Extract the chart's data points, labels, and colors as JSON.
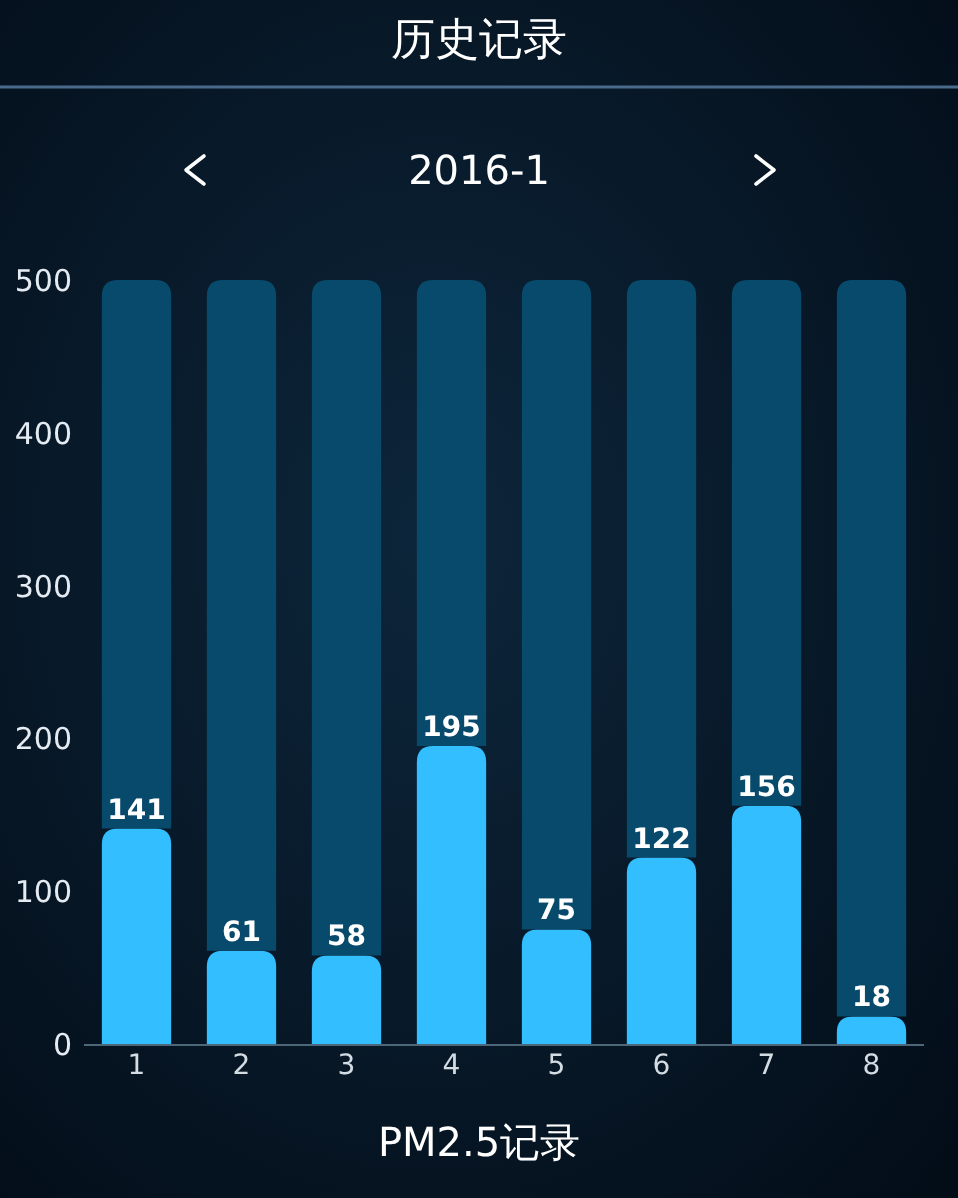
{
  "chart_data": {
    "type": "bar",
    "title": "历史记录",
    "subtitle": "2016-1",
    "xlabel": "PM2.5记录",
    "categories": [
      "1",
      "2",
      "3",
      "4",
      "5",
      "6",
      "7",
      "8"
    ],
    "stacked": true,
    "series": [
      {
        "color": "#33bfff",
        "values": [
          141,
          61,
          58,
          195,
          75,
          122,
          156,
          18
        ],
        "value_labels": [
          "141",
          "61",
          "58",
          "195",
          "75",
          "122",
          "156",
          "18"
        ]
      },
      {
        "color": "#084a6b",
        "values": [
          359,
          439,
          442,
          305,
          425,
          378,
          344,
          482
        ]
      }
    ],
    "ylim": [
      0,
      500
    ],
    "yticks": [
      0,
      100,
      200,
      300,
      400,
      500
    ]
  }
}
